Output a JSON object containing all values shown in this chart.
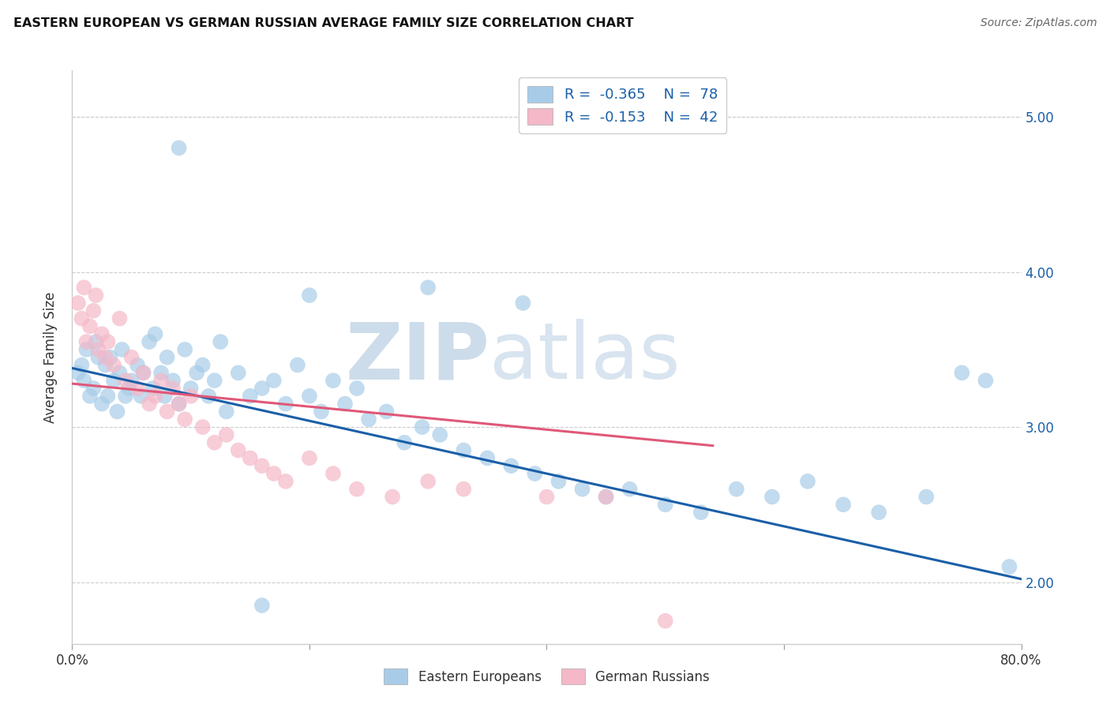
{
  "title": "EASTERN EUROPEAN VS GERMAN RUSSIAN AVERAGE FAMILY SIZE CORRELATION CHART",
  "source": "Source: ZipAtlas.com",
  "ylabel": "Average Family Size",
  "xlim": [
    0.0,
    0.8
  ],
  "ylim": [
    1.6,
    5.3
  ],
  "yticks": [
    2.0,
    3.0,
    4.0,
    5.0
  ],
  "xticks": [
    0.0,
    0.2,
    0.4,
    0.6,
    0.8
  ],
  "xticklabels": [
    "0.0%",
    "",
    "",
    "",
    "80.0%"
  ],
  "yticklabels_right": [
    "2.00",
    "3.00",
    "4.00",
    "5.00"
  ],
  "legend_r1": "-0.365",
  "legend_n1": "78",
  "legend_r2": "-0.153",
  "legend_n2": "42",
  "blue_color": "#a8cce8",
  "pink_color": "#f4b8c8",
  "line_blue": "#1a5fa8",
  "line_pink": "#e05878",
  "watermark_zip": "ZIP",
  "watermark_atlas": "atlas",
  "watermark_color": "#cddcea",
  "blue_x": [
    0.005,
    0.01,
    0.015,
    0.008,
    0.012,
    0.018,
    0.022,
    0.025,
    0.02,
    0.03,
    0.028,
    0.035,
    0.032,
    0.04,
    0.038,
    0.045,
    0.042,
    0.048,
    0.05,
    0.055,
    0.058,
    0.06,
    0.065,
    0.068,
    0.07,
    0.075,
    0.078,
    0.08,
    0.085,
    0.09,
    0.095,
    0.1,
    0.105,
    0.11,
    0.115,
    0.12,
    0.125,
    0.13,
    0.14,
    0.15,
    0.16,
    0.17,
    0.18,
    0.19,
    0.2,
    0.21,
    0.22,
    0.23,
    0.24,
    0.25,
    0.265,
    0.28,
    0.295,
    0.31,
    0.33,
    0.35,
    0.37,
    0.39,
    0.41,
    0.43,
    0.45,
    0.47,
    0.5,
    0.53,
    0.56,
    0.59,
    0.62,
    0.65,
    0.68,
    0.72,
    0.75,
    0.77,
    0.79,
    0.2,
    0.3,
    0.38,
    0.16,
    0.09
  ],
  "blue_y": [
    3.35,
    3.3,
    3.2,
    3.4,
    3.5,
    3.25,
    3.45,
    3.15,
    3.55,
    3.2,
    3.4,
    3.3,
    3.45,
    3.35,
    3.1,
    3.2,
    3.5,
    3.25,
    3.3,
    3.4,
    3.2,
    3.35,
    3.55,
    3.25,
    3.6,
    3.35,
    3.2,
    3.45,
    3.3,
    3.15,
    3.5,
    3.25,
    3.35,
    3.4,
    3.2,
    3.3,
    3.55,
    3.1,
    3.35,
    3.2,
    3.25,
    3.3,
    3.15,
    3.4,
    3.2,
    3.1,
    3.3,
    3.15,
    3.25,
    3.05,
    3.1,
    2.9,
    3.0,
    2.95,
    2.85,
    2.8,
    2.75,
    2.7,
    2.65,
    2.6,
    2.55,
    2.6,
    2.5,
    2.45,
    2.6,
    2.55,
    2.65,
    2.5,
    2.45,
    2.55,
    3.35,
    3.3,
    2.1,
    3.85,
    3.9,
    3.8,
    1.85,
    4.8
  ],
  "pink_x": [
    0.005,
    0.008,
    0.012,
    0.015,
    0.01,
    0.018,
    0.022,
    0.02,
    0.025,
    0.028,
    0.03,
    0.035,
    0.04,
    0.045,
    0.05,
    0.055,
    0.06,
    0.065,
    0.07,
    0.075,
    0.08,
    0.085,
    0.09,
    0.095,
    0.1,
    0.11,
    0.12,
    0.13,
    0.14,
    0.15,
    0.16,
    0.17,
    0.18,
    0.2,
    0.22,
    0.24,
    0.27,
    0.3,
    0.33,
    0.4,
    0.45,
    0.5
  ],
  "pink_y": [
    3.8,
    3.7,
    3.55,
    3.65,
    3.9,
    3.75,
    3.5,
    3.85,
    3.6,
    3.45,
    3.55,
    3.4,
    3.7,
    3.3,
    3.45,
    3.25,
    3.35,
    3.15,
    3.2,
    3.3,
    3.1,
    3.25,
    3.15,
    3.05,
    3.2,
    3.0,
    2.9,
    2.95,
    2.85,
    2.8,
    2.75,
    2.7,
    2.65,
    2.8,
    2.7,
    2.6,
    2.55,
    2.65,
    2.6,
    2.55,
    2.55,
    1.75
  ],
  "blue_line_x": [
    0.0,
    0.8
  ],
  "blue_line_y": [
    3.38,
    2.02
  ],
  "pink_line_x": [
    0.0,
    0.54
  ],
  "pink_line_y": [
    3.28,
    2.88
  ]
}
